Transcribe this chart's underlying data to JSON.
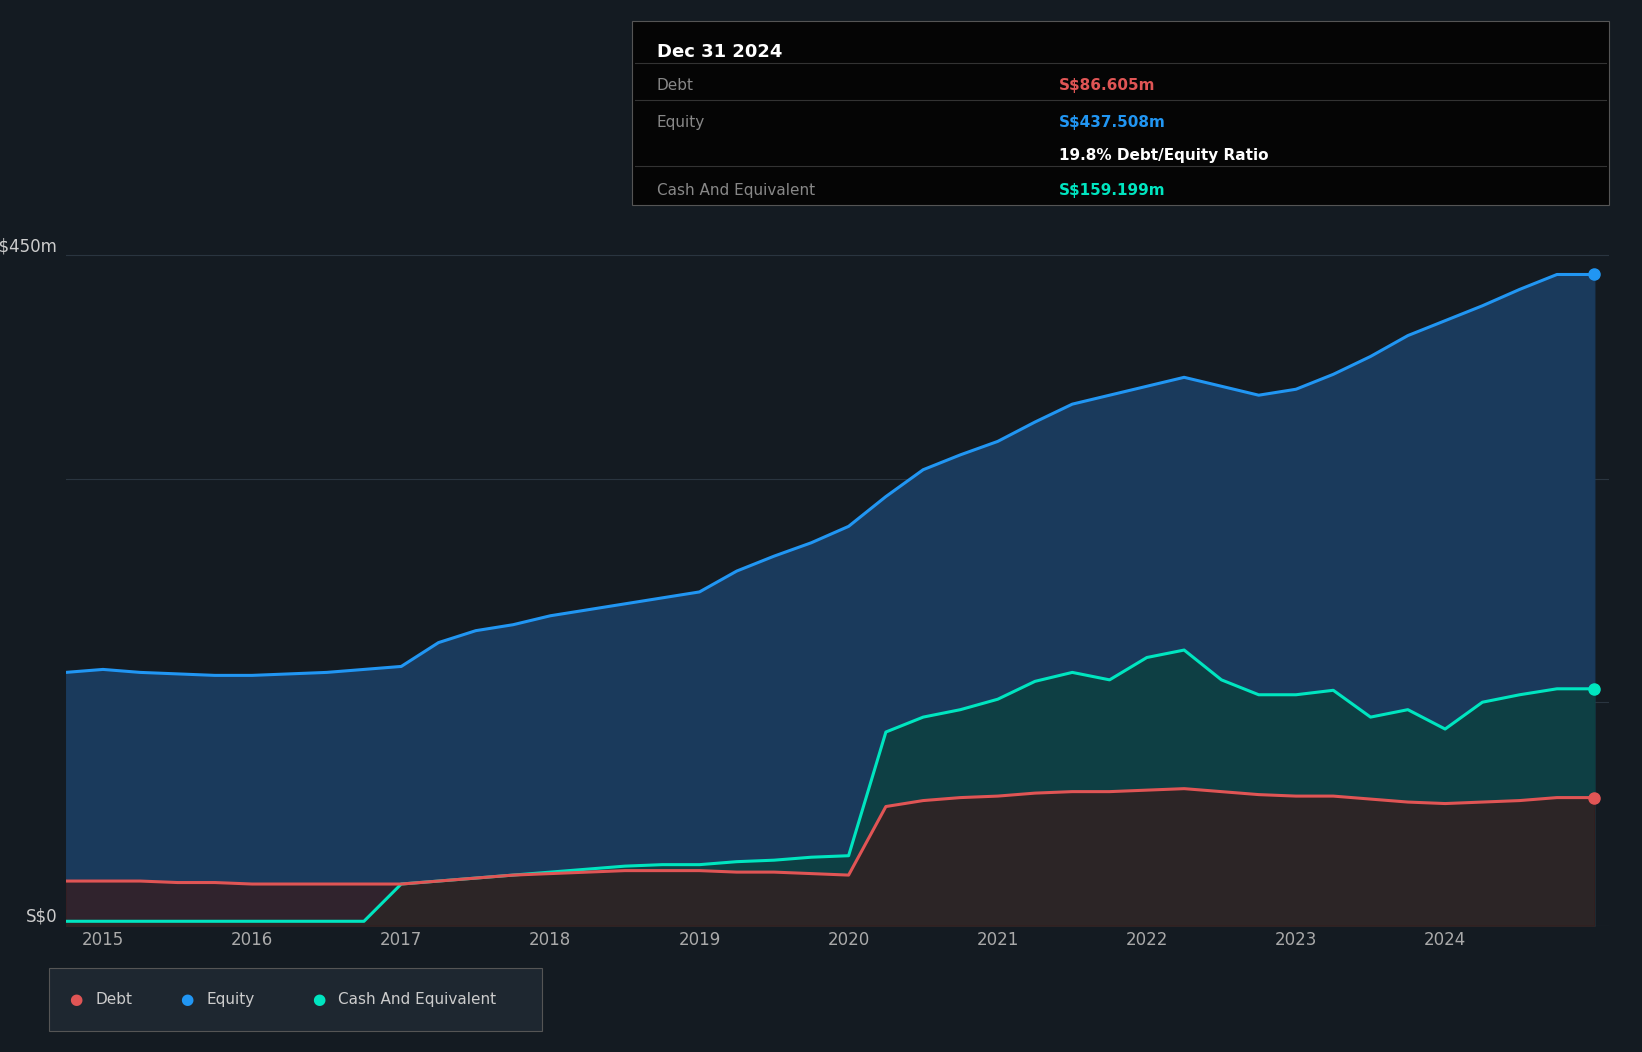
{
  "background_color": "#141b22",
  "plot_bg_color": "#141b22",
  "ylabel_top": "S$450m",
  "ylabel_bottom": "S$0",
  "x_ticks": [
    2015,
    2016,
    2017,
    2018,
    2019,
    2020,
    2021,
    2022,
    2023,
    2024
  ],
  "equity_color": "#2196f3",
  "debt_color": "#e05555",
  "cash_color": "#00e5c0",
  "equity_fill": "#1a3a5c",
  "debt_fill": "#3a1a1a",
  "cash_fill": "#0d4040",
  "grid_color": "#2a3540",
  "tooltip": {
    "date": "Dec 31 2024",
    "debt_label": "Debt",
    "debt_value": "S$86.605m",
    "equity_label": "Equity",
    "equity_value": "S$437.508m",
    "ratio_text": "19.8% Debt/Equity Ratio",
    "cash_label": "Cash And Equivalent",
    "cash_value": "S$159.199m",
    "bg_color": "#000000",
    "title_color": "#ffffff",
    "label_color": "#888888",
    "debt_value_color": "#e05555",
    "equity_value_color": "#2196f3",
    "ratio_color": "#ffffff",
    "cash_value_color": "#00e5c0"
  },
  "legend": {
    "debt_label": "Debt",
    "equity_label": "Equity",
    "cash_label": "Cash And Equivalent"
  },
  "dates": [
    2014.75,
    2015.0,
    2015.25,
    2015.5,
    2015.75,
    2016.0,
    2016.25,
    2016.5,
    2016.75,
    2017.0,
    2017.25,
    2017.5,
    2017.75,
    2018.0,
    2018.25,
    2018.5,
    2018.75,
    2019.0,
    2019.25,
    2019.5,
    2019.75,
    2020.0,
    2020.25,
    2020.5,
    2020.75,
    2021.0,
    2021.25,
    2021.5,
    2021.75,
    2022.0,
    2022.25,
    2022.5,
    2022.75,
    2023.0,
    2023.25,
    2023.5,
    2023.75,
    2024.0,
    2024.25,
    2024.5,
    2024.75,
    2025.0
  ],
  "equity": [
    170,
    172,
    170,
    169,
    168,
    168,
    169,
    170,
    172,
    174,
    190,
    198,
    202,
    208,
    212,
    216,
    220,
    224,
    238,
    248,
    257,
    268,
    288,
    306,
    316,
    325,
    338,
    350,
    356,
    362,
    368,
    362,
    356,
    360,
    370,
    382,
    396,
    406,
    416,
    427,
    437,
    437
  ],
  "debt": [
    30,
    30,
    30,
    29,
    29,
    28,
    28,
    28,
    28,
    28,
    30,
    32,
    34,
    35,
    36,
    37,
    37,
    37,
    36,
    36,
    35,
    34,
    80,
    84,
    86,
    87,
    89,
    90,
    90,
    91,
    92,
    90,
    88,
    87,
    87,
    85,
    83,
    82,
    83,
    84,
    86,
    86
  ],
  "cash": [
    3,
    3,
    3,
    3,
    3,
    3,
    3,
    3,
    3,
    28,
    30,
    32,
    34,
    36,
    38,
    40,
    41,
    41,
    43,
    44,
    46,
    47,
    130,
    140,
    145,
    152,
    164,
    170,
    165,
    180,
    185,
    165,
    155,
    155,
    158,
    140,
    145,
    132,
    150,
    155,
    159,
    159
  ],
  "ylim": [
    0,
    480
  ],
  "xlim": [
    2014.75,
    2025.1
  ]
}
